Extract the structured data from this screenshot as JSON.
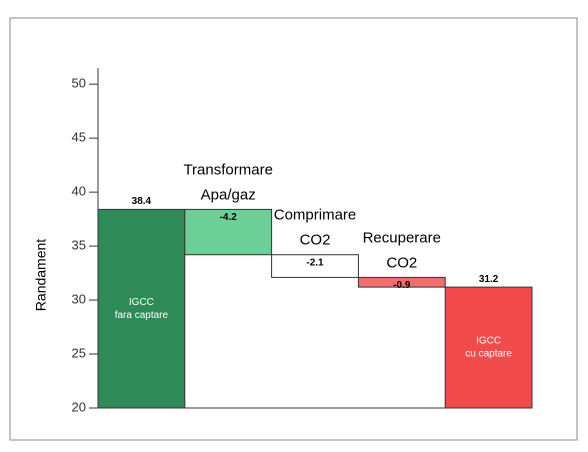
{
  "chart_data": {
    "type": "waterfall",
    "y_label": "Randament",
    "categories": [
      [
        "IGCC",
        "fara captare"
      ],
      [
        "Transformare",
        "Apa/gaz"
      ],
      [
        "Comprimare",
        "CO2"
      ],
      [
        "Recuperare",
        "CO2"
      ],
      [
        "IGCC",
        "cu captare"
      ]
    ],
    "values": [
      38.4,
      -4.2,
      -2.1,
      -0.9,
      31.2
    ],
    "total": [
      false,
      false,
      false,
      false,
      true
    ],
    "colors": [
      "#2e8b57",
      "#6ccf98",
      "#ffffff",
      "#f26d6d",
      "#f24b4b"
    ],
    "ylim": [
      20,
      51.5
    ],
    "yticks": [
      20,
      25,
      30,
      35,
      40,
      45,
      50
    ]
  }
}
